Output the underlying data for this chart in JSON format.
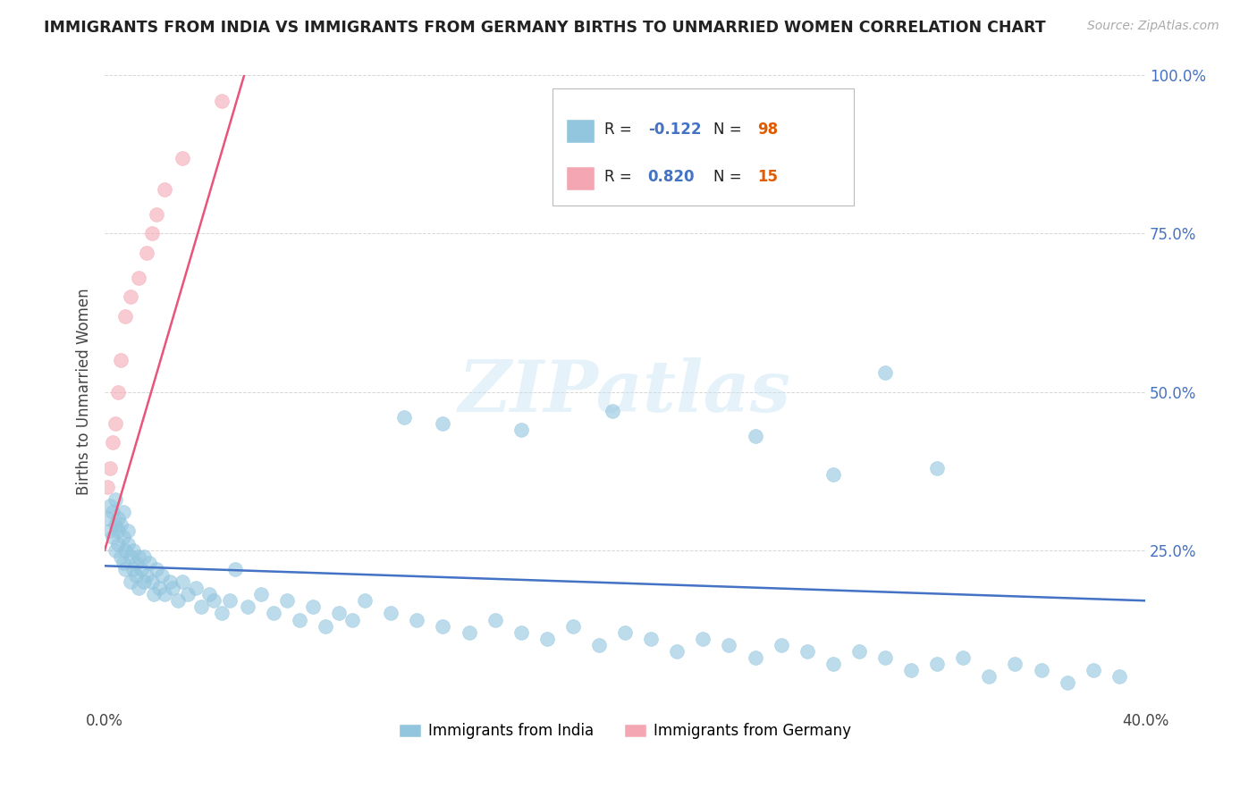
{
  "title": "IMMIGRANTS FROM INDIA VS IMMIGRANTS FROM GERMANY BIRTHS TO UNMARRIED WOMEN CORRELATION CHART",
  "source": "Source: ZipAtlas.com",
  "ylabel": "Births to Unmarried Women",
  "legend_india": "Immigrants from India",
  "legend_germany": "Immigrants from Germany",
  "r_india": "-0.122",
  "n_india": "98",
  "r_germany": "0.820",
  "n_germany": "15",
  "color_india": "#92c5de",
  "color_germany": "#f4a7b3",
  "trendline_india": "#4472c4",
  "trendline_germany": "#e8547a",
  "xlim": [
    0.0,
    0.4
  ],
  "ylim": [
    0.0,
    1.0
  ],
  "xticks": [
    0.0,
    0.1,
    0.2,
    0.3,
    0.4
  ],
  "xticklabels": [
    "0.0%",
    "",
    "",
    "",
    "40.0%"
  ],
  "yticks": [
    0.25,
    0.5,
    0.75,
    1.0
  ],
  "yticklabels": [
    "25.0%",
    "50.0%",
    "75.0%",
    "100.0%"
  ],
  "watermark": "ZIPatlas",
  "india_x": [
    0.001,
    0.002,
    0.002,
    0.003,
    0.003,
    0.004,
    0.004,
    0.004,
    0.005,
    0.005,
    0.005,
    0.006,
    0.006,
    0.007,
    0.007,
    0.007,
    0.008,
    0.008,
    0.009,
    0.009,
    0.01,
    0.01,
    0.011,
    0.011,
    0.012,
    0.012,
    0.013,
    0.013,
    0.014,
    0.015,
    0.015,
    0.016,
    0.017,
    0.018,
    0.019,
    0.02,
    0.021,
    0.022,
    0.023,
    0.025,
    0.026,
    0.028,
    0.03,
    0.032,
    0.035,
    0.037,
    0.04,
    0.042,
    0.045,
    0.048,
    0.05,
    0.055,
    0.06,
    0.065,
    0.07,
    0.075,
    0.08,
    0.085,
    0.09,
    0.095,
    0.1,
    0.11,
    0.12,
    0.13,
    0.14,
    0.15,
    0.16,
    0.17,
    0.18,
    0.19,
    0.2,
    0.21,
    0.22,
    0.23,
    0.24,
    0.25,
    0.26,
    0.27,
    0.28,
    0.29,
    0.3,
    0.31,
    0.32,
    0.33,
    0.34,
    0.35,
    0.36,
    0.37,
    0.38,
    0.39,
    0.115,
    0.195,
    0.3,
    0.32,
    0.25,
    0.28,
    0.13,
    0.16
  ],
  "india_y": [
    0.3,
    0.28,
    0.32,
    0.27,
    0.31,
    0.29,
    0.25,
    0.33,
    0.26,
    0.3,
    0.28,
    0.24,
    0.29,
    0.23,
    0.27,
    0.31,
    0.25,
    0.22,
    0.26,
    0.28,
    0.24,
    0.2,
    0.25,
    0.22,
    0.23,
    0.21,
    0.24,
    0.19,
    0.22,
    0.24,
    0.2,
    0.21,
    0.23,
    0.2,
    0.18,
    0.22,
    0.19,
    0.21,
    0.18,
    0.2,
    0.19,
    0.17,
    0.2,
    0.18,
    0.19,
    0.16,
    0.18,
    0.17,
    0.15,
    0.17,
    0.22,
    0.16,
    0.18,
    0.15,
    0.17,
    0.14,
    0.16,
    0.13,
    0.15,
    0.14,
    0.17,
    0.15,
    0.14,
    0.13,
    0.12,
    0.14,
    0.12,
    0.11,
    0.13,
    0.1,
    0.12,
    0.11,
    0.09,
    0.11,
    0.1,
    0.08,
    0.1,
    0.09,
    0.07,
    0.09,
    0.08,
    0.06,
    0.07,
    0.08,
    0.05,
    0.07,
    0.06,
    0.04,
    0.06,
    0.05,
    0.46,
    0.47,
    0.53,
    0.38,
    0.43,
    0.37,
    0.45,
    0.44
  ],
  "germany_x": [
    0.001,
    0.002,
    0.003,
    0.004,
    0.005,
    0.006,
    0.008,
    0.01,
    0.013,
    0.016,
    0.018,
    0.02,
    0.023,
    0.03,
    0.045
  ],
  "germany_y": [
    0.35,
    0.38,
    0.42,
    0.45,
    0.5,
    0.55,
    0.62,
    0.65,
    0.68,
    0.72,
    0.75,
    0.78,
    0.82,
    0.87,
    0.96
  ],
  "india_trend_x": [
    0.0,
    0.4
  ],
  "india_trend_y": [
    0.225,
    0.17
  ],
  "germany_trend_x": [
    0.0,
    0.055
  ],
  "germany_trend_y": [
    0.25,
    1.02
  ]
}
